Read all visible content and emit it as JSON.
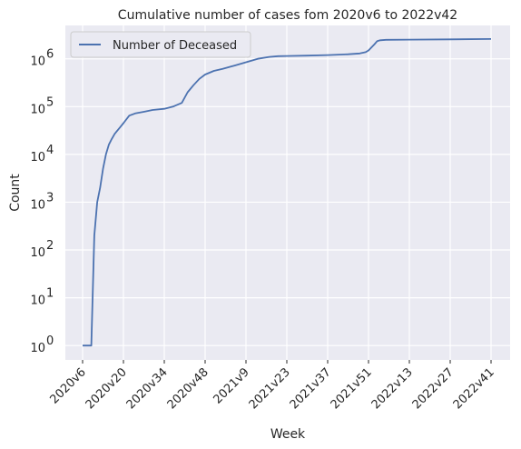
{
  "chart_data": {
    "type": "line",
    "title": "Cumulative number of cases fom 2020v6 to 2022v42",
    "xlabel": "Week",
    "ylabel": "Count",
    "yscale": "log",
    "ylim": [
      0.5,
      5000000
    ],
    "grid": true,
    "legend_position": "top-left",
    "x_ticks": [
      "2020v6",
      "2020v20",
      "2020v34",
      "2020v48",
      "2021v9",
      "2021v23",
      "2021v37",
      "2021v51",
      "2022v13",
      "2022v27",
      "2022v41"
    ],
    "y_ticks": [
      {
        "value": 1,
        "exp": "0"
      },
      {
        "value": 10,
        "exp": "1"
      },
      {
        "value": 100,
        "exp": "2"
      },
      {
        "value": 1000,
        "exp": "3"
      },
      {
        "value": 10000,
        "exp": "4"
      },
      {
        "value": 100000,
        "exp": "5"
      },
      {
        "value": 1000000,
        "exp": "6"
      }
    ],
    "series": [
      {
        "name": "Number of Deceased",
        "color": "#4c72b0",
        "x": [
          "2020v6",
          "2020v7",
          "2020v8",
          "2020v9",
          "2020v10",
          "2020v11",
          "2020v12",
          "2020v13",
          "2020v14",
          "2020v15",
          "2020v16",
          "2020v17",
          "2020v18",
          "2020v19",
          "2020v20",
          "2020v22",
          "2020v24",
          "2020v27",
          "2020v30",
          "2020v34",
          "2020v37",
          "2020v40",
          "2020v42",
          "2020v44",
          "2020v46",
          "2020v48",
          "2020v51",
          "2021v1",
          "2021v5",
          "2021v9",
          "2021v13",
          "2021v17",
          "2021v20",
          "2021v23",
          "2021v30",
          "2021v37",
          "2021v44",
          "2021v48",
          "2021v50",
          "2021v51",
          "2022v1",
          "2022v2",
          "2022v3",
          "2022v5",
          "2022v13",
          "2022v27",
          "2022v41"
        ],
        "values": [
          1,
          1,
          1,
          1,
          200,
          1000,
          2000,
          5000,
          10000,
          16000,
          21000,
          27000,
          32000,
          38000,
          45000,
          65000,
          72000,
          78000,
          85000,
          90000,
          100000,
          120000,
          200000,
          280000,
          380000,
          470000,
          560000,
          620000,
          720000,
          850000,
          1000000,
          1100000,
          1140000,
          1150000,
          1170000,
          1200000,
          1250000,
          1300000,
          1380000,
          1500000,
          2000000,
          2350000,
          2450000,
          2500000,
          2530000,
          2560000,
          2600000
        ]
      }
    ]
  }
}
